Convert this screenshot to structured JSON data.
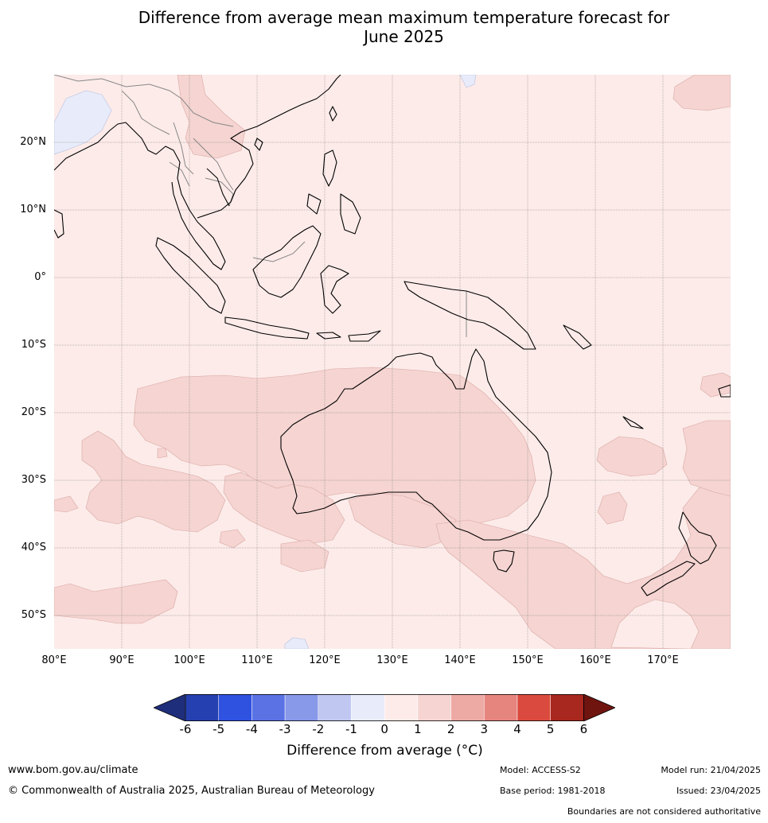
{
  "title_line1": "Difference from average mean maximum temperature forecast for",
  "title_line2": "June 2025",
  "lat_labels": [
    "20°N",
    "10°N",
    "0°",
    "10°S",
    "20°S",
    "30°S",
    "40°S",
    "50°S"
  ],
  "lon_labels": [
    "80°E",
    "90°E",
    "100°E",
    "110°E",
    "120°E",
    "130°E",
    "140°E",
    "150°E",
    "160°E",
    "170°E"
  ],
  "colorbar": {
    "ticks": [
      "-6",
      "-5",
      "-4",
      "-3",
      "-2",
      "-1",
      "0",
      "1",
      "2",
      "3",
      "4",
      "5",
      "6"
    ],
    "colors": [
      "#1f2e7a",
      "#2540b0",
      "#2f52e0",
      "#5a72e4",
      "#8899ea",
      "#c0c8f2",
      "#e8ecfa",
      "#fcebe9",
      "#f5d4d1",
      "#edaaa5",
      "#e6857e",
      "#db4a3e",
      "#a8271e",
      "#701410"
    ],
    "label": "Difference from average (°C)"
  },
  "map_colors": {
    "background": "#fcebe9",
    "warm": "#f5d4d1",
    "cool": "#e8ecfa",
    "coast": "#000000",
    "border": "#888888",
    "grid": "#7a7a7a"
  },
  "footer": {
    "website": "www.bom.gov.au/climate",
    "copyright": "© Commonwealth of Australia 2025, Australian Bureau of Meteorology",
    "model": "Model: ACCESS-S2",
    "base_period": "Base period: 1981-2018",
    "model_run": "Model run: 21/04/2025",
    "issued": "Issued: 23/04/2025",
    "disclaimer": "Boundaries are not considered authoritative"
  }
}
